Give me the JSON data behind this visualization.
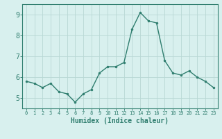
{
  "x": [
    0,
    1,
    2,
    3,
    4,
    5,
    6,
    7,
    8,
    9,
    10,
    11,
    12,
    13,
    14,
    15,
    16,
    17,
    18,
    19,
    20,
    21,
    22,
    23
  ],
  "y": [
    5.8,
    5.7,
    5.5,
    5.7,
    5.3,
    5.2,
    4.8,
    5.2,
    5.4,
    6.2,
    6.5,
    6.5,
    6.7,
    8.3,
    9.1,
    8.7,
    8.6,
    6.8,
    6.2,
    6.1,
    6.3,
    6.0,
    5.8,
    5.5
  ],
  "line_color": "#2e7d6e",
  "marker": "o",
  "marker_size": 2,
  "bg_color": "#d8f0ee",
  "grid_color": "#b8d8d4",
  "xlabel": "Humidex (Indice chaleur)",
  "xlim": [
    -0.5,
    23.5
  ],
  "ylim": [
    4.5,
    9.5
  ],
  "yticks": [
    5,
    6,
    7,
    8,
    9
  ],
  "xticks": [
    0,
    1,
    2,
    3,
    4,
    5,
    6,
    7,
    8,
    9,
    10,
    11,
    12,
    13,
    14,
    15,
    16,
    17,
    18,
    19,
    20,
    21,
    22,
    23
  ],
  "tick_color": "#2e7d6e",
  "axis_color": "#2e7d6e",
  "xtick_fontsize": 5,
  "ytick_fontsize": 7,
  "xlabel_fontsize": 7
}
